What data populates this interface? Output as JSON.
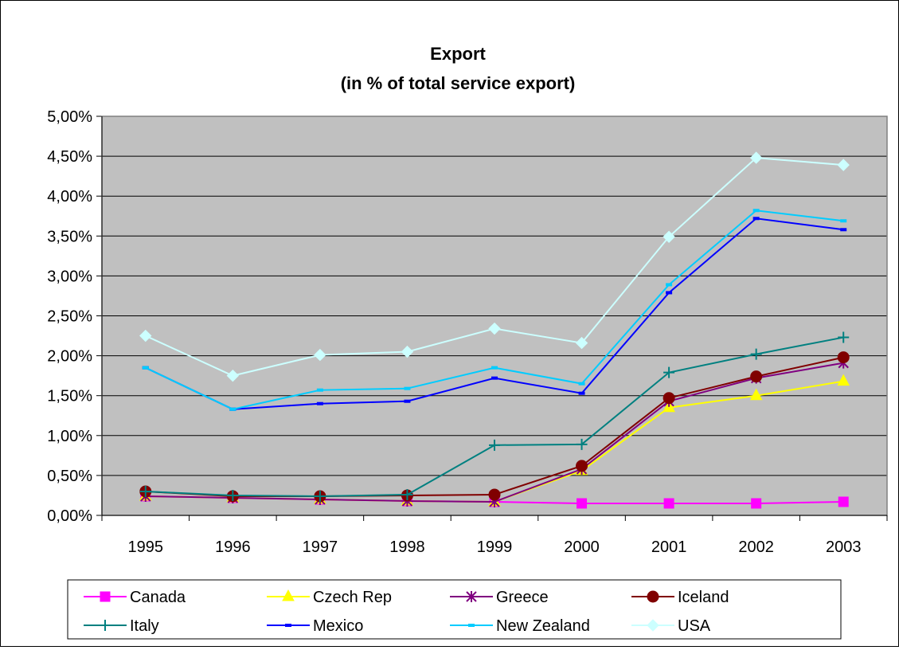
{
  "chart_data": {
    "type": "line",
    "title_lines": [
      "Export",
      "(in % of total service export)"
    ],
    "xlabel": "",
    "ylabel": "",
    "categories": [
      "1995",
      "1996",
      "1997",
      "1998",
      "1999",
      "2000",
      "2001",
      "2002",
      "2003"
    ],
    "ylim": [
      0,
      5
    ],
    "y_ticks": [
      0,
      0.5,
      1,
      1.5,
      2,
      2.5,
      3,
      3.5,
      4,
      4.5,
      5
    ],
    "y_tick_labels": [
      "0,00%",
      "0,50%",
      "1,00%",
      "1,50%",
      "2,00%",
      "2,50%",
      "3,00%",
      "3,50%",
      "4,00%",
      "4,50%",
      "5,00%"
    ],
    "grid": "horizontal",
    "plot_background": "#c0c0c0",
    "legend_position": "bottom",
    "series": [
      {
        "name": "Canada",
        "color": "#ff00ff",
        "marker": "square",
        "values": [
          0.24,
          0.22,
          0.2,
          0.18,
          0.17,
          0.15,
          0.15,
          0.15,
          0.17
        ]
      },
      {
        "name": "Czech Rep",
        "color": "#ffff00",
        "marker": "triangle",
        "values": [
          0.24,
          0.22,
          0.2,
          0.18,
          0.17,
          0.56,
          1.35,
          1.5,
          1.68
        ]
      },
      {
        "name": "Greece",
        "color": "#800080",
        "marker": "star",
        "values": [
          0.24,
          0.22,
          0.2,
          0.18,
          0.17,
          0.58,
          1.43,
          1.72,
          1.91
        ]
      },
      {
        "name": "Iceland",
        "color": "#800000",
        "marker": "circle",
        "values": [
          0.3,
          0.24,
          0.24,
          0.25,
          0.26,
          0.62,
          1.47,
          1.74,
          1.98
        ]
      },
      {
        "name": "Italy",
        "color": "#008080",
        "marker": "plus",
        "values": [
          0.3,
          0.25,
          0.24,
          0.26,
          0.88,
          0.89,
          1.79,
          2.02,
          2.23
        ]
      },
      {
        "name": "Mexico",
        "color": "#0000ff",
        "marker": "dash",
        "values": [
          1.85,
          1.33,
          1.4,
          1.43,
          1.72,
          1.53,
          2.79,
          3.72,
          3.58
        ]
      },
      {
        "name": "New Zealand",
        "color": "#00ccff",
        "marker": "dash",
        "values": [
          1.85,
          1.33,
          1.57,
          1.59,
          1.85,
          1.65,
          2.89,
          3.82,
          3.69
        ]
      },
      {
        "name": "USA",
        "color": "#ccffff",
        "marker": "diamond",
        "values": [
          2.25,
          1.75,
          2.01,
          2.05,
          2.34,
          2.16,
          3.49,
          4.48,
          4.39
        ]
      }
    ]
  }
}
